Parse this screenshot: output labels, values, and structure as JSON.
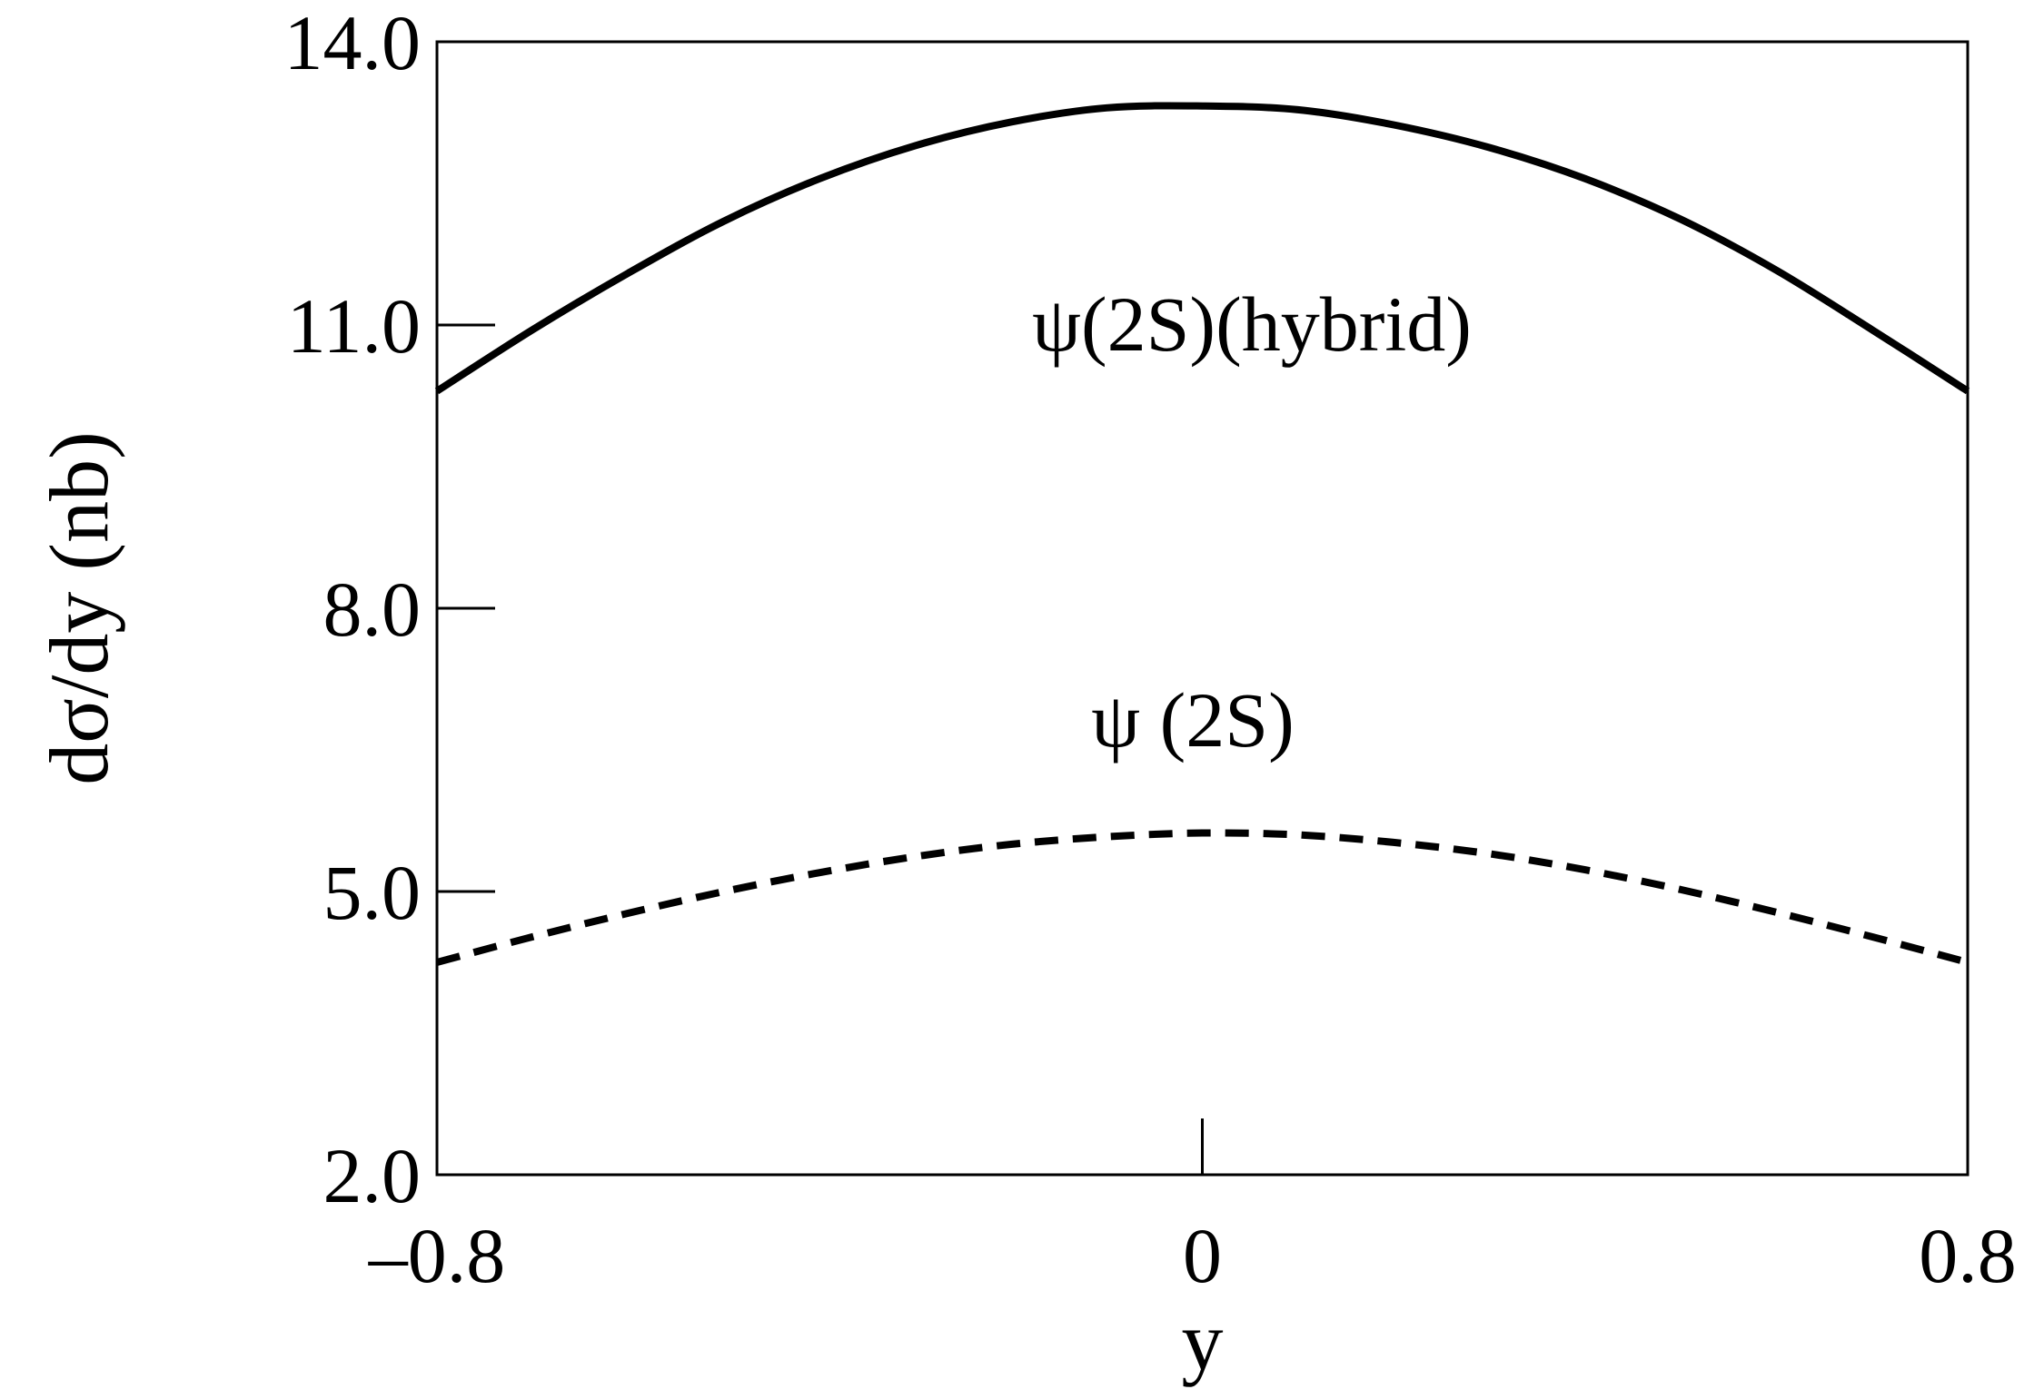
{
  "chart_data": {
    "type": "line",
    "xlabel": "y",
    "ylabel": "dσ/dy (nb)",
    "xlim": [
      -0.8,
      0.8
    ],
    "ylim": [
      2.0,
      14.0
    ],
    "x_ticks": [
      -0.8,
      0,
      0.8
    ],
    "x_tick_labels": [
      "–0.8",
      "0",
      "0.8"
    ],
    "y_ticks": [
      2.0,
      5.0,
      8.0,
      11.0,
      14.0
    ],
    "y_tick_labels": [
      "2.0",
      "5.0",
      "8.0",
      "11.0",
      "14.0"
    ],
    "grid": false,
    "series": [
      {
        "label": "ψ(2S)(hybrid)",
        "style": "solid",
        "x": [
          -0.8,
          -0.7,
          -0.6,
          -0.5,
          -0.4,
          -0.3,
          -0.2,
          -0.1,
          0.0,
          0.1,
          0.2,
          0.3,
          0.4,
          0.5,
          0.6,
          0.7,
          0.8
        ],
        "y": [
          10.3,
          10.95,
          11.55,
          12.1,
          12.55,
          12.9,
          13.15,
          13.3,
          13.32,
          13.28,
          13.12,
          12.88,
          12.55,
          12.12,
          11.58,
          10.95,
          10.3
        ]
      },
      {
        "label": "ψ (2S)",
        "style": "dashed",
        "x": [
          -0.8,
          -0.7,
          -0.6,
          -0.5,
          -0.4,
          -0.3,
          -0.2,
          -0.1,
          0.0,
          0.1,
          0.2,
          0.3,
          0.4,
          0.5,
          0.6,
          0.7,
          0.8
        ],
        "y": [
          4.25,
          4.52,
          4.77,
          5.0,
          5.2,
          5.37,
          5.5,
          5.58,
          5.62,
          5.6,
          5.52,
          5.4,
          5.23,
          5.02,
          4.78,
          4.52,
          4.25
        ]
      }
    ]
  },
  "colors": {
    "line": "#000000",
    "background": "#ffffff"
  }
}
